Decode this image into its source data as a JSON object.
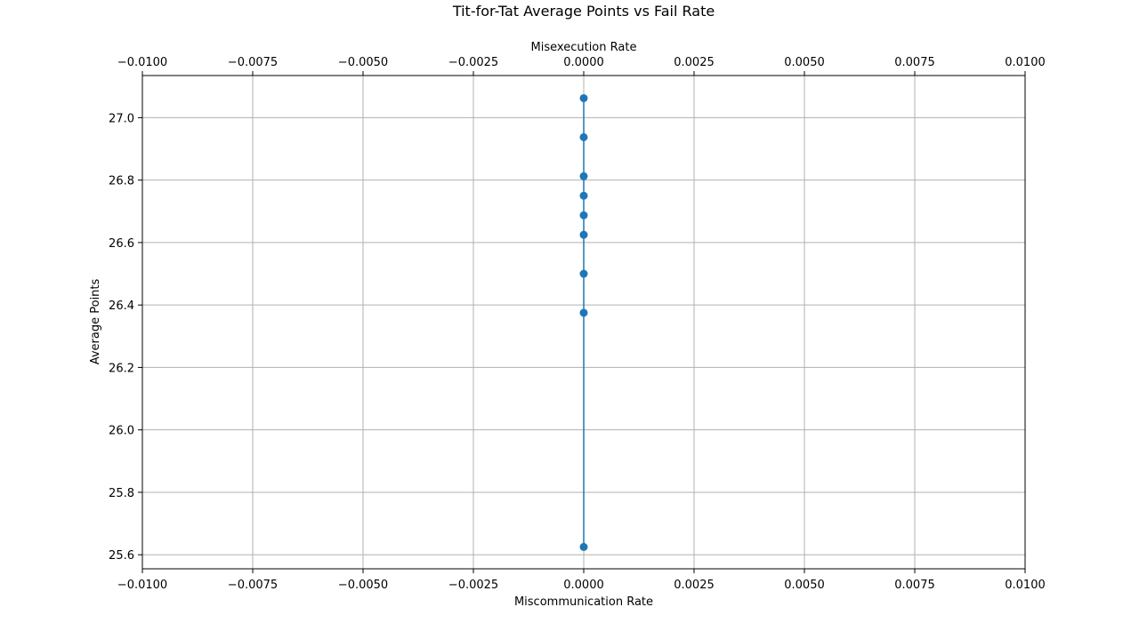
{
  "chart_data": {
    "type": "scatter",
    "title": "Tit-for-Tat Average Points vs Fail Rate",
    "xlabel": "Miscommunication Rate",
    "x2label": "Misexecution Rate",
    "ylabel": "Average Points",
    "xlim": [
      -0.01,
      0.01
    ],
    "ylim": [
      25.555,
      27.135
    ],
    "xticks": [
      -0.01,
      -0.0075,
      -0.005,
      -0.0025,
      0.0,
      0.0025,
      0.005,
      0.0075,
      0.01
    ],
    "xtick_labels": [
      "−0.0100",
      "−0.0075",
      "−0.0050",
      "−0.0025",
      "0.0000",
      "0.0025",
      "0.0050",
      "0.0075",
      "0.0100"
    ],
    "yticks": [
      25.6,
      25.8,
      26.0,
      26.2,
      26.4,
      26.6,
      26.8,
      27.0
    ],
    "ytick_labels": [
      "25.6",
      "25.8",
      "26.0",
      "26.2",
      "26.4",
      "26.6",
      "26.8",
      "27.0"
    ],
    "grid": true,
    "series": [
      {
        "x": [
          0,
          0,
          0,
          0,
          0,
          0,
          0,
          0,
          0
        ],
        "y": [
          27.0625,
          26.9375,
          26.8125,
          26.75,
          26.6875,
          26.625,
          26.5,
          26.375,
          25.625
        ],
        "color": "#1f77b4",
        "marker": "circle",
        "line": true
      }
    ]
  }
}
